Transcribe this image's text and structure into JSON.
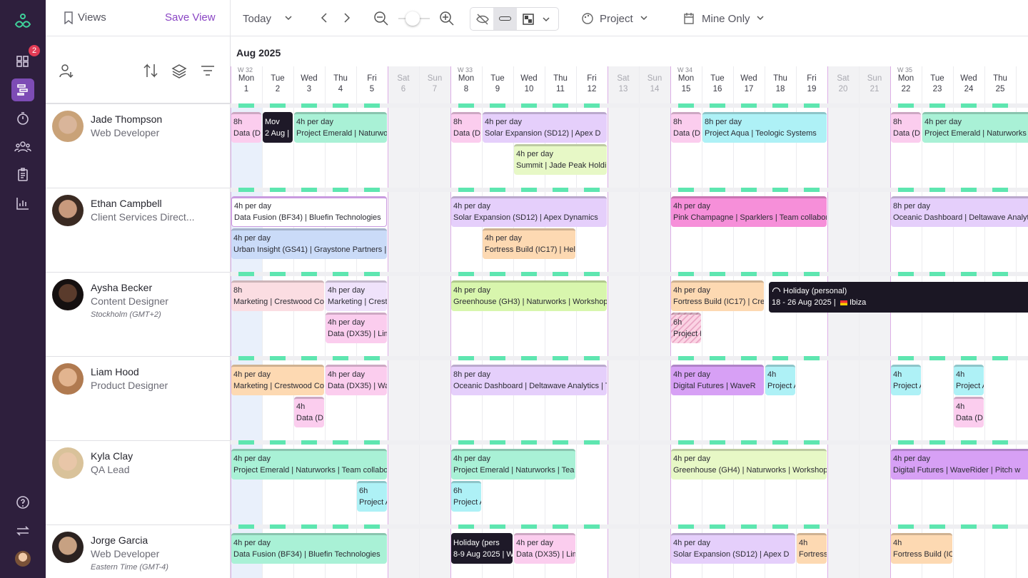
{
  "sidebar": {
    "badge": "2"
  },
  "toolbar": {
    "views": "Views",
    "save_view": "Save View",
    "today": "Today",
    "project": "Project",
    "mine_only": "Mine Only"
  },
  "calendar": {
    "month": "Aug 2025",
    "weeks": [
      "W 32",
      "W 33",
      "W 34",
      "W 35"
    ],
    "days": [
      {
        "name": "Mon",
        "num": 1
      },
      {
        "name": "Tue",
        "num": 2
      },
      {
        "name": "Wed",
        "num": 3
      },
      {
        "name": "Thu",
        "num": 4
      },
      {
        "name": "Fri",
        "num": 5
      },
      {
        "name": "Sat",
        "num": 6
      },
      {
        "name": "Sun",
        "num": 7
      },
      {
        "name": "Mon",
        "num": 8
      },
      {
        "name": "Tue",
        "num": 9
      },
      {
        "name": "Wed",
        "num": 10
      },
      {
        "name": "Thu",
        "num": 11
      },
      {
        "name": "Fri",
        "num": 12
      },
      {
        "name": "Sat",
        "num": 13
      },
      {
        "name": "Sun",
        "num": 14
      },
      {
        "name": "Mon",
        "num": 15
      },
      {
        "name": "Tue",
        "num": 16
      },
      {
        "name": "Wed",
        "num": 17
      },
      {
        "name": "Thu",
        "num": 18
      },
      {
        "name": "Fri",
        "num": 19
      },
      {
        "name": "Sat",
        "num": 20
      },
      {
        "name": "Sun",
        "num": 21
      },
      {
        "name": "Mon",
        "num": 22
      },
      {
        "name": "Tue",
        "num": 23
      },
      {
        "name": "Wed",
        "num": 24
      },
      {
        "name": "Thu",
        "num": 25
      }
    ]
  },
  "people": [
    {
      "name": "Jade Thompson",
      "role": "Web Developer",
      "assignments": [
        {
          "hours": "8h",
          "label": "Data (D"
        },
        {
          "hours": "Mov",
          "label": "2 Aug | "
        },
        {
          "hours": "4h per day",
          "label": "Project Emerald | Naturwo"
        },
        {
          "hours": "8h",
          "label": "Data (D"
        },
        {
          "hours": "4h per day",
          "label": "Solar Expansion (SD12) | Apex D"
        },
        {
          "hours": "4h per day",
          "label": "Summit | Jade Peak Holdin"
        },
        {
          "hours": "8h",
          "label": "Data (D"
        },
        {
          "hours": "8h per day",
          "label": "Project Aqua | Teologic Systems"
        },
        {
          "hours": "8h",
          "label": "Data (D"
        },
        {
          "hours": "4h per day",
          "label": "Project Emerald | Naturworks"
        }
      ]
    },
    {
      "name": "Ethan Campbell",
      "role": "Client Services Direct...",
      "assignments": [
        {
          "hours": "4h per day",
          "label": "Data Fusion (BF34) | Bluefin Technologies"
        },
        {
          "hours": "4h per day",
          "label": "Urban Insight (GS41) | Graystone Partners | V"
        },
        {
          "hours": "4h per day",
          "label": "Solar Expansion (SD12) | Apex Dynamics"
        },
        {
          "hours": "4h per day",
          "label": "Fortress Build (IC17) | Heli"
        },
        {
          "hours": "4h per day",
          "label": "Pink Champagne | Sparklers | Team collabora"
        },
        {
          "hours": "8h per day",
          "label": "Oceanic Dashboard | Deltawave Analyt"
        }
      ]
    },
    {
      "name": "Aysha Becker",
      "role": "Content Designer",
      "timezone": "Stockholm (GMT+2)",
      "assignments": [
        {
          "hours": "8h",
          "label": "Marketing | Crestwood Co"
        },
        {
          "hours": "4h per day",
          "label": "Marketing | Crest"
        },
        {
          "hours": "4h per day",
          "label": "Data (DX35) | Lim"
        },
        {
          "hours": "4h per day",
          "label": "Greenhouse (GH3) | Naturworks | Workshop"
        },
        {
          "hours": "4h per day",
          "label": "Fortress Build (IC17) | Cre"
        },
        {
          "hours": "6h",
          "label": "Project E"
        }
      ]
    },
    {
      "name": "Liam Hood",
      "role": "Product Designer",
      "assignments": [
        {
          "hours": "4h per day",
          "label": "Marketing | Crestwood Co"
        },
        {
          "hours": "4h per day",
          "label": "Data (DX35) | Wa"
        },
        {
          "hours": "4h",
          "label": "Data (D"
        },
        {
          "hours": "8h per day",
          "label": "Oceanic Dashboard | Deltawave Analytics | T"
        },
        {
          "hours": "4h per day",
          "label": "Digital Futures | WaveR"
        },
        {
          "hours": "4h",
          "label": "Project A"
        },
        {
          "hours": "4h",
          "label": "Project A"
        },
        {
          "hours": "4h",
          "label": "Project A"
        },
        {
          "hours": "4h",
          "label": "Data (D"
        }
      ]
    },
    {
      "name": "Kyla Clay",
      "role": "QA Lead",
      "assignments": [
        {
          "hours": "4h per day",
          "label": "Project Emerald | Naturworks | Team collabo"
        },
        {
          "hours": "6h",
          "label": "Project A"
        },
        {
          "hours": "4h per day",
          "label": "Project Emerald | Naturworks | Tea"
        },
        {
          "hours": "6h",
          "label": "Project A"
        },
        {
          "hours": "4h per day",
          "label": "Greenhouse (GH4) | Naturworks | Workshop"
        },
        {
          "hours": "4h per day",
          "label": "Digital Futures | WaveRider | Pitch w"
        }
      ]
    },
    {
      "name": "Jorge Garcia",
      "role": "Web Developer",
      "timezone": "Eastern Time (GMT-4)",
      "assignments": [
        {
          "hours": "4h per day",
          "label": "Data Fusion (BF34) | Bluefin Technologies"
        },
        {
          "hours": "Holiday (pers",
          "label": "8-9 Aug 2025 | W"
        },
        {
          "hours": "4h per day",
          "label": "Data (DX35) | Lim"
        },
        {
          "hours": "4h per day",
          "label": "Solar Expansion (SD12) | Apex D"
        },
        {
          "hours": "4h",
          "label": "Fortress"
        },
        {
          "hours": "4h",
          "label": "Fortress Build (IC"
        }
      ]
    }
  ],
  "tooltip": {
    "title": "Holiday (personal)",
    "dates": "18 - 26 Aug 2025 |",
    "place": "Ibiza"
  }
}
